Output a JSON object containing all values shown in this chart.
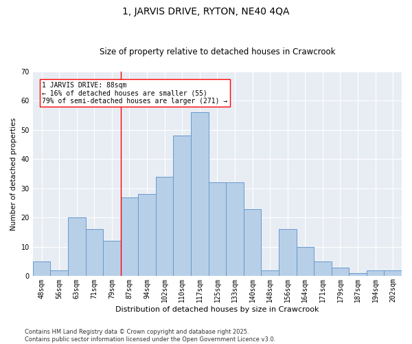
{
  "title": "1, JARVIS DRIVE, RYTON, NE40 4QA",
  "subtitle": "Size of property relative to detached houses in Crawcrook",
  "xlabel": "Distribution of detached houses by size in Crawcrook",
  "ylabel": "Number of detached properties",
  "categories": [
    "48sqm",
    "56sqm",
    "63sqm",
    "71sqm",
    "79sqm",
    "87sqm",
    "94sqm",
    "102sqm",
    "110sqm",
    "117sqm",
    "125sqm",
    "133sqm",
    "140sqm",
    "148sqm",
    "156sqm",
    "164sqm",
    "171sqm",
    "179sqm",
    "187sqm",
    "194sqm",
    "202sqm"
  ],
  "values": [
    5,
    2,
    20,
    16,
    12,
    27,
    28,
    34,
    48,
    56,
    32,
    32,
    23,
    2,
    16,
    10,
    5,
    3,
    1,
    2,
    2
  ],
  "bar_color": "#b8cfe8",
  "bar_edge_color": "#6699cc",
  "bg_color": "#e8edf4",
  "grid_color": "#ffffff",
  "annotation_text_line1": "1 JARVIS DRIVE: 88sqm",
  "annotation_text_line2": "← 16% of detached houses are smaller (55)",
  "annotation_text_line3": "79% of semi-detached houses are larger (271) →",
  "red_line_x": 4.5,
  "ylim": [
    0,
    70
  ],
  "yticks": [
    0,
    10,
    20,
    30,
    40,
    50,
    60,
    70
  ],
  "title_fontsize": 10,
  "subtitle_fontsize": 8.5,
  "xlabel_fontsize": 8,
  "ylabel_fontsize": 7.5,
  "tick_fontsize": 7,
  "annotation_fontsize": 7,
  "footer_text": "Contains HM Land Registry data © Crown copyright and database right 2025.\nContains public sector information licensed under the Open Government Licence v3.0."
}
